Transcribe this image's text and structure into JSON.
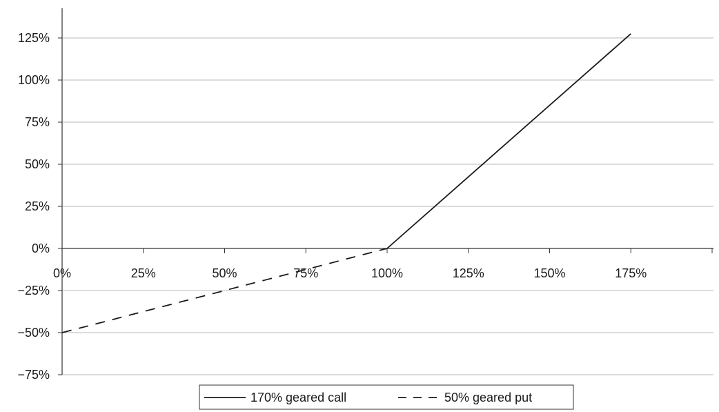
{
  "chart_data": {
    "type": "line",
    "title": "",
    "xlabel": "",
    "ylabel": "",
    "x_ticks": [
      "0%",
      "25%",
      "50%",
      "75%",
      "100%",
      "125%",
      "150%",
      "175%"
    ],
    "y_ticks": [
      "125%",
      "100%",
      "75%",
      "50%",
      "25%",
      "0%",
      "−25%",
      "−50%",
      "−75%"
    ],
    "xlim": [
      0,
      200
    ],
    "ylim": [
      -75,
      135
    ],
    "grid": "horizontal",
    "legend_position": "bottom",
    "series": [
      {
        "name": "170% geared call",
        "style": "solid",
        "x": [
          100,
          175
        ],
        "y": [
          0,
          127.5
        ]
      },
      {
        "name": "50% geared put",
        "style": "dashed",
        "x": [
          0,
          100
        ],
        "y": [
          -50,
          0
        ]
      }
    ]
  }
}
